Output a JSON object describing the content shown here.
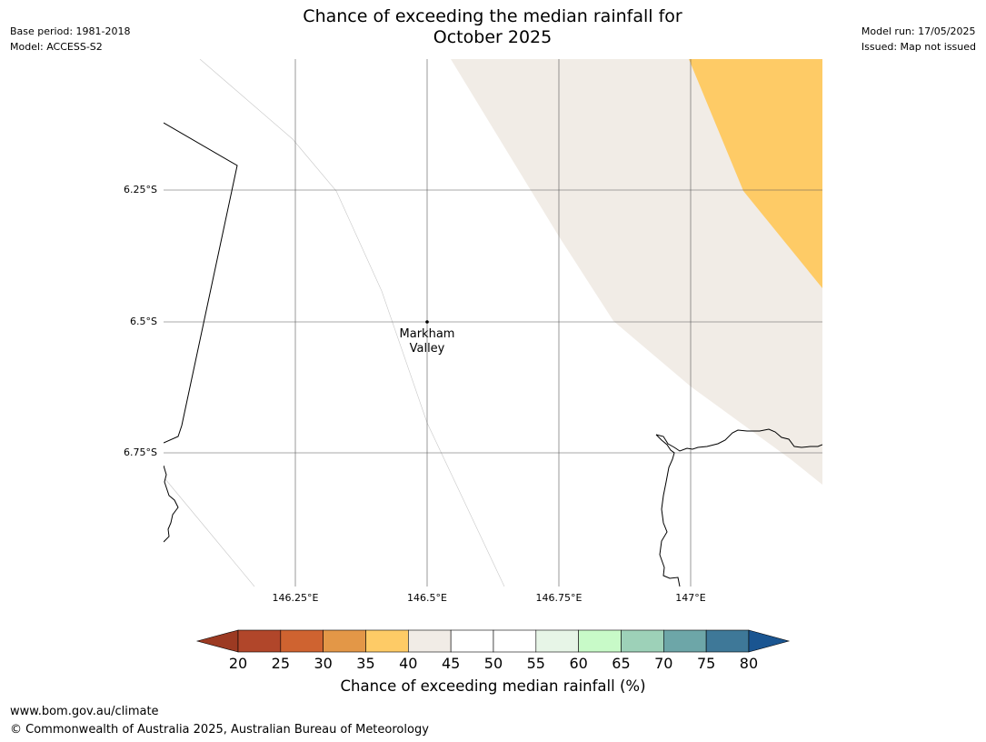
{
  "header": {
    "title_line1": "Chance of exceeding the median rainfall for",
    "title_line2": "October 2025",
    "base_period": "Base period: 1981-2018",
    "model": "Model: ACCESS-S2",
    "model_run": "Model run: 17/05/2025",
    "issued": "Issued: Map not issued"
  },
  "map": {
    "lat_labels": [
      "6.25°S",
      "6.5°S",
      "6.75°S"
    ],
    "lon_labels": [
      "146.25°E",
      "146.5°E",
      "146.75°E",
      "147°E"
    ],
    "place": {
      "name_line1": "Markham",
      "name_line2": "Valley"
    },
    "region_colors": {
      "band_40_45": "#f1ece6",
      "band_35_40": "#fecb66"
    }
  },
  "colorbar": {
    "title": "Chance of exceeding median rainfall (%)",
    "ticks": [
      "20",
      "25",
      "30",
      "35",
      "40",
      "45",
      "50",
      "55",
      "60",
      "65",
      "70",
      "75",
      "80"
    ],
    "colors": [
      "#9c3a22",
      "#b1462a",
      "#cf6330",
      "#e39747",
      "#fecb66",
      "#f1ece6",
      "#ffffff",
      "#ffffff",
      "#e7f5e7",
      "#c8fac8",
      "#9dd1b8",
      "#6da6a8",
      "#3e7898",
      "#1a5591"
    ]
  },
  "footer": {
    "url": "www.bom.gov.au/climate",
    "copyright": "© Commonwealth of Australia 2025, Australian Bureau of Meteorology"
  }
}
